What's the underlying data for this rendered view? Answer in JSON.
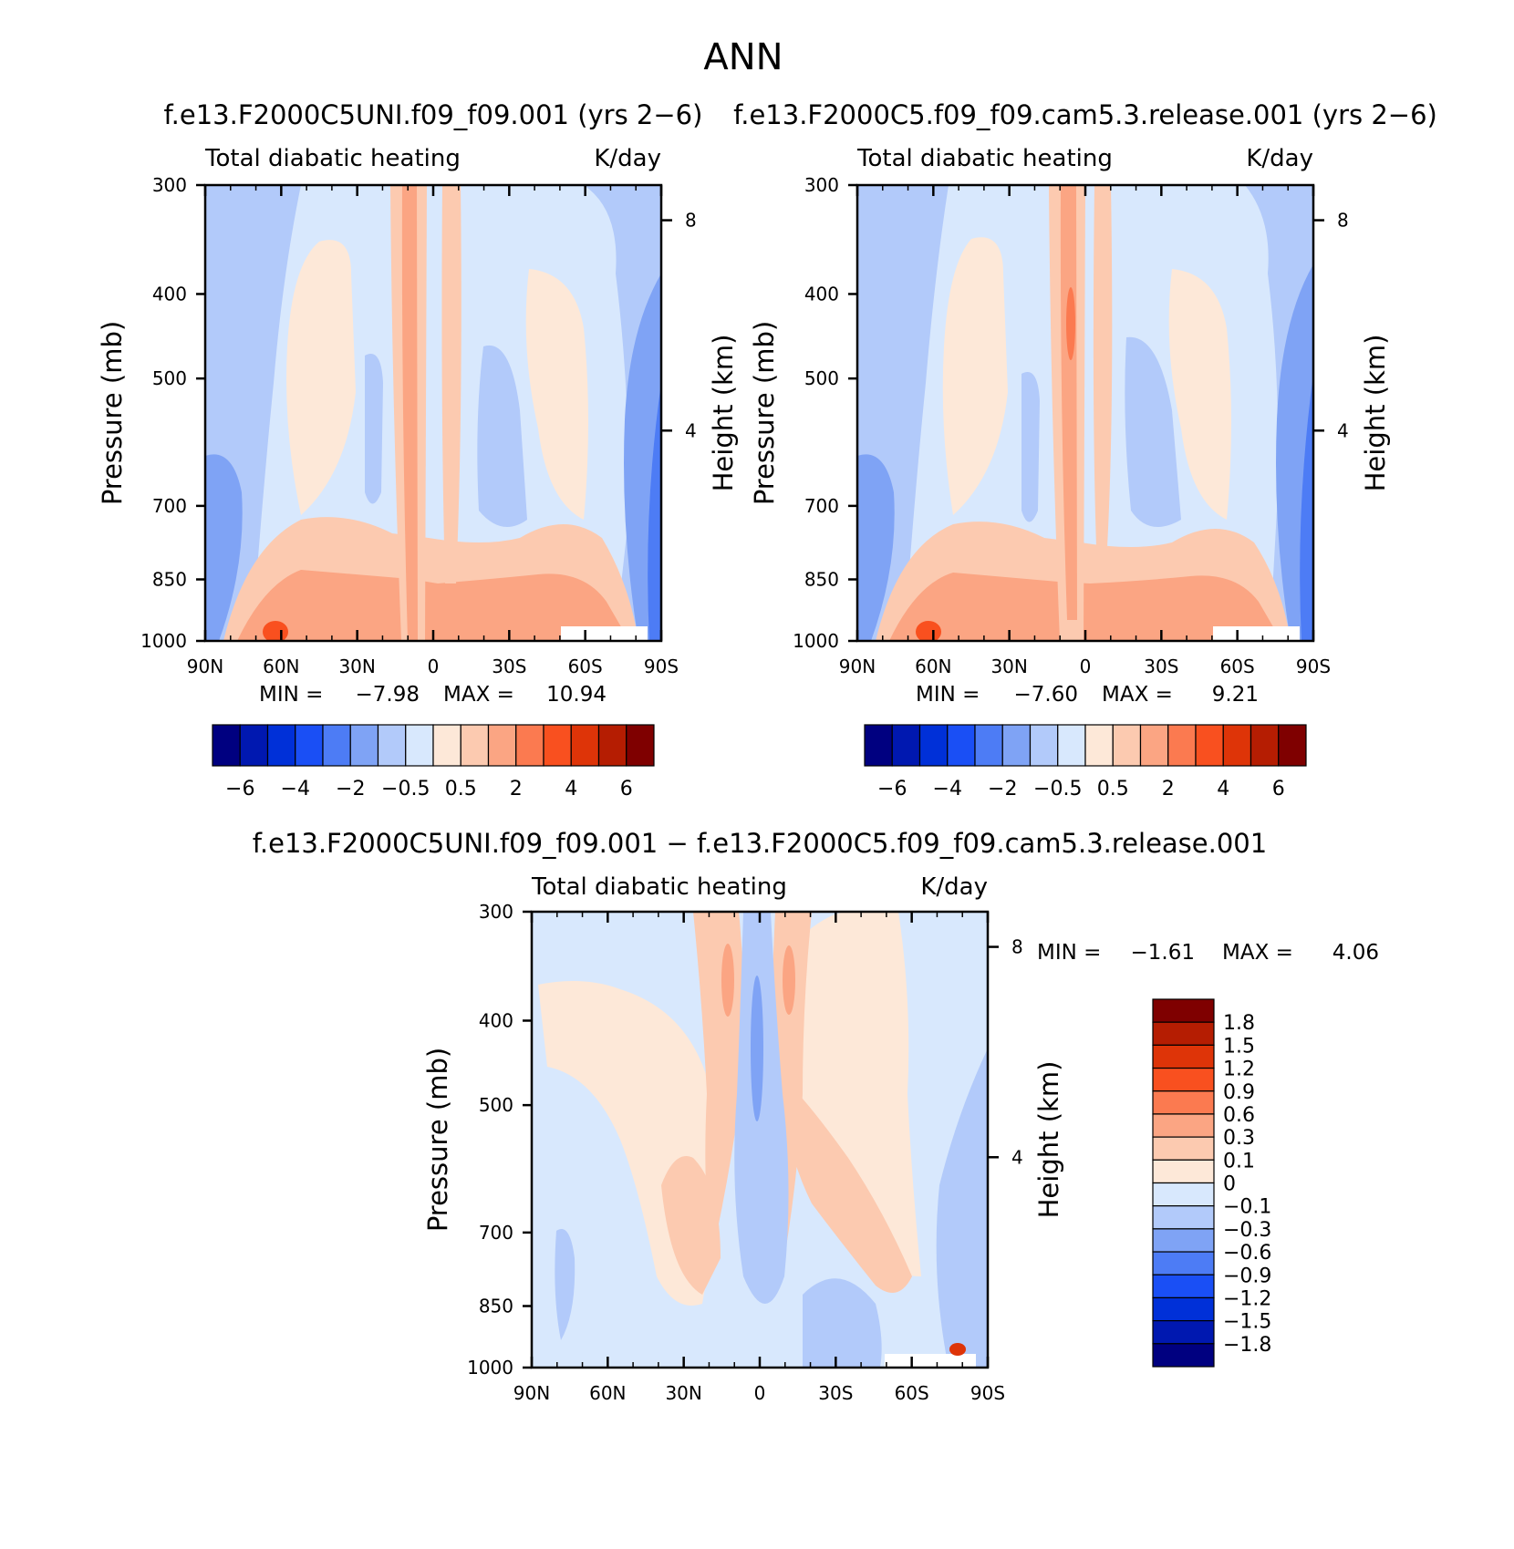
{
  "title": "ANN",
  "chart_data": [
    {
      "type": "heatmap",
      "panel_title": "f.e13.F2000C5UNI.f09_f09.001 (yrs 2−6)",
      "title_left": "Total diabatic heating",
      "title_right": "K/day",
      "xlabel": "",
      "ylabel": "Pressure (mb)",
      "ylabel_right": "Height (km)",
      "x_ticks": [
        "90N",
        "60N",
        "30N",
        "0",
        "30S",
        "60S",
        "90S"
      ],
      "y_ticks": [
        "300",
        "400",
        "500",
        "700",
        "850",
        "1000"
      ],
      "y_ticks_right": [
        "8",
        "4"
      ],
      "yscale": "log",
      "ylim": [
        1000,
        300
      ],
      "xlim": [
        90,
        -90
      ],
      "stats": {
        "min_label": "MIN =",
        "min": "−7.98",
        "max_label": "MAX =",
        "max": "10.94"
      },
      "colorbar": {
        "levels": [
          -7,
          -6,
          -5,
          -4,
          -3,
          -2,
          -1,
          -0.5,
          0,
          0.5,
          1,
          2,
          3,
          4,
          5,
          6,
          7
        ],
        "tick_labels": [
          "−6",
          "−4",
          "−2",
          "−0.5",
          "0.5",
          "2",
          "4",
          "6"
        ],
        "colors": [
          "#000080",
          "#0018b0",
          "#0030d8",
          "#1a4ff5",
          "#4d7cf5",
          "#7fa3f5",
          "#b2cafa",
          "#d8e8fd",
          "#fde8d8",
          "#fccab0",
          "#fba583",
          "#fb7a50",
          "#f9501f",
          "#de3408",
          "#b51d02",
          "#7f0000"
        ]
      }
    },
    {
      "type": "heatmap",
      "panel_title": "f.e13.F2000C5.f09_f09.cam5.3.release.001 (yrs 2−6)",
      "title_left": "Total diabatic heating",
      "title_right": "K/day",
      "xlabel": "",
      "ylabel": "Pressure (mb)",
      "ylabel_right": "Height (km)",
      "x_ticks": [
        "90N",
        "60N",
        "30N",
        "0",
        "30S",
        "60S",
        "90S"
      ],
      "y_ticks": [
        "300",
        "400",
        "500",
        "700",
        "850",
        "1000"
      ],
      "y_ticks_right": [
        "8",
        "4"
      ],
      "yscale": "log",
      "ylim": [
        1000,
        300
      ],
      "xlim": [
        90,
        -90
      ],
      "stats": {
        "min_label": "MIN =",
        "min": "−7.60",
        "max_label": "MAX =",
        "max": "9.21"
      },
      "colorbar": {
        "levels": [
          -7,
          -6,
          -5,
          -4,
          -3,
          -2,
          -1,
          -0.5,
          0,
          0.5,
          1,
          2,
          3,
          4,
          5,
          6,
          7
        ],
        "tick_labels": [
          "−6",
          "−4",
          "−2",
          "−0.5",
          "0.5",
          "2",
          "4",
          "6"
        ],
        "colors": [
          "#000080",
          "#0018b0",
          "#0030d8",
          "#1a4ff5",
          "#4d7cf5",
          "#7fa3f5",
          "#b2cafa",
          "#d8e8fd",
          "#fde8d8",
          "#fccab0",
          "#fba583",
          "#fb7a50",
          "#f9501f",
          "#de3408",
          "#b51d02",
          "#7f0000"
        ]
      }
    },
    {
      "type": "heatmap",
      "panel_title": "f.e13.F2000C5UNI.f09_f09.001 − f.e13.F2000C5.f09_f09.cam5.3.release.001",
      "title_left": "Total diabatic heating",
      "title_right": "K/day",
      "xlabel": "",
      "ylabel": "Pressure (mb)",
      "ylabel_right": "Height (km)",
      "x_ticks": [
        "90N",
        "60N",
        "30N",
        "0",
        "30S",
        "60S",
        "90S"
      ],
      "y_ticks": [
        "300",
        "400",
        "500",
        "700",
        "850",
        "1000"
      ],
      "y_ticks_right": [
        "8",
        "4"
      ],
      "yscale": "log",
      "ylim": [
        1000,
        300
      ],
      "xlim": [
        90,
        -90
      ],
      "stats": {
        "min_label": "MIN =",
        "min": "−1.61",
        "max_label": "MAX =",
        "max": "4.06"
      },
      "colorbar": {
        "levels": [
          -2.1,
          -1.8,
          -1.5,
          -1.2,
          -0.9,
          -0.6,
          -0.3,
          -0.1,
          0,
          0.1,
          0.3,
          0.6,
          0.9,
          1.2,
          1.5,
          1.8,
          2.1
        ],
        "tick_labels": [
          "1.8",
          "1.5",
          "1.2",
          "0.9",
          "0.6",
          "0.3",
          "0.1",
          "0",
          "−0.1",
          "−0.3",
          "−0.6",
          "−0.9",
          "−1.2",
          "−1.5",
          "−1.8"
        ],
        "colors": [
          "#7f0000",
          "#b51d02",
          "#de3408",
          "#f9501f",
          "#fb7a50",
          "#fba583",
          "#fccab0",
          "#fde8d8",
          "#d8e8fd",
          "#b2cafa",
          "#7fa3f5",
          "#4d7cf5",
          "#1a4ff5",
          "#0030d8",
          "#0018b0",
          "#000080"
        ]
      }
    }
  ]
}
